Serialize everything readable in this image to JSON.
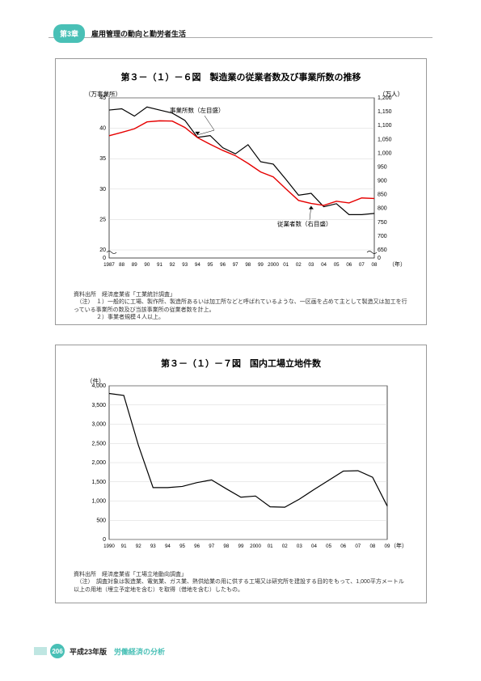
{
  "header": {
    "chapter_badge": "第3章",
    "title": "雇用管理の動向と勤労者生活"
  },
  "chart1": {
    "title": "第３－（１）－６図　製造業の従業者数及び事業所数の推移",
    "left_axis_label": "（万事業所）",
    "right_axis_label": "（万人）",
    "x_axis_unit": "（年）",
    "left_ylim": [
      20,
      45
    ],
    "left_yticks": [
      20,
      25,
      30,
      35,
      40,
      45
    ],
    "right_ylim": [
      650,
      1200
    ],
    "right_yticks": [
      650,
      700,
      750,
      800,
      850,
      900,
      950,
      1000,
      1050,
      1100,
      1150,
      1200
    ],
    "x_labels": [
      "1987",
      "88",
      "89",
      "90",
      "91",
      "92",
      "93",
      "94",
      "95",
      "96",
      "97",
      "98",
      "99",
      "2000",
      "01",
      "02",
      "03",
      "04",
      "05",
      "06",
      "07",
      "08"
    ],
    "series_black": {
      "label": "事業所数（左目盛）",
      "color": "#000000",
      "width": 1.2,
      "values": [
        43.0,
        43.2,
        42.0,
        43.5,
        43.0,
        42.5,
        41.3,
        38.5,
        38.8,
        36.8,
        35.8,
        37.3,
        34.5,
        34.1,
        31.6,
        29.0,
        29.3,
        27.1,
        27.6,
        25.8,
        25.8,
        26.0
      ]
    },
    "series_red": {
      "label": "従業者数（右目盛）",
      "color": "#e60000",
      "width": 1.4,
      "values": [
        1063,
        1075,
        1088,
        1113,
        1117,
        1116,
        1093,
        1056,
        1032,
        1010,
        991,
        963,
        932,
        914,
        871,
        829,
        818,
        811,
        826,
        820,
        838,
        836
      ]
    },
    "annotation_black": "事業所数（左目盛）",
    "annotation_red": "従業者数（右目盛）",
    "source_label": "資料出所",
    "source_text": "経済産業省「工業統計調査」",
    "note_label": "（注）",
    "note1": "１）一般的に工場、製作所、製造所あるいは加工所などと呼ばれているような、一区画を占めて主として製造又は加工を行っている事業所の数及び当該事業所の従業者数を計上。",
    "note2": "２）事業者規模４人以上。",
    "grid_color": "#cccccc",
    "background": "#ffffff"
  },
  "chart2": {
    "title": "第３－（１）－７図　国内工場立地件数",
    "y_axis_label": "（件）",
    "x_axis_unit": "（年）",
    "ylim": [
      0,
      4000
    ],
    "yticks": [
      0,
      500,
      1000,
      1500,
      2000,
      2500,
      3000,
      3500,
      4000
    ],
    "x_labels": [
      "1990",
      "91",
      "92",
      "93",
      "94",
      "95",
      "96",
      "97",
      "98",
      "99",
      "2000",
      "01",
      "02",
      "03",
      "04",
      "05",
      "06",
      "07",
      "08",
      "09"
    ],
    "series": {
      "color": "#000000",
      "width": 1.2,
      "values": [
        3800,
        3750,
        2450,
        1350,
        1350,
        1380,
        1480,
        1550,
        1320,
        1100,
        1130,
        850,
        840,
        1050,
        1300,
        1540,
        1780,
        1790,
        1620,
        870
      ]
    },
    "source_label": "資料出所",
    "source_text": "経済産業省「工場立地動向調査」",
    "note_label": "（注）",
    "note_text": "調査対象は製造業、電気業、ガス業、熱供給業の用に供する工場又は研究所を建設する目的をもって、1,000平方メートル以上の用地（埋立予定地を含む）を取得（借地を含む）したもの。",
    "grid_color": "#cccccc",
    "background": "#ffffff"
  },
  "footer": {
    "page_num": "206",
    "text_black": "平成23年版",
    "text_teal": "労働経済の分析"
  }
}
